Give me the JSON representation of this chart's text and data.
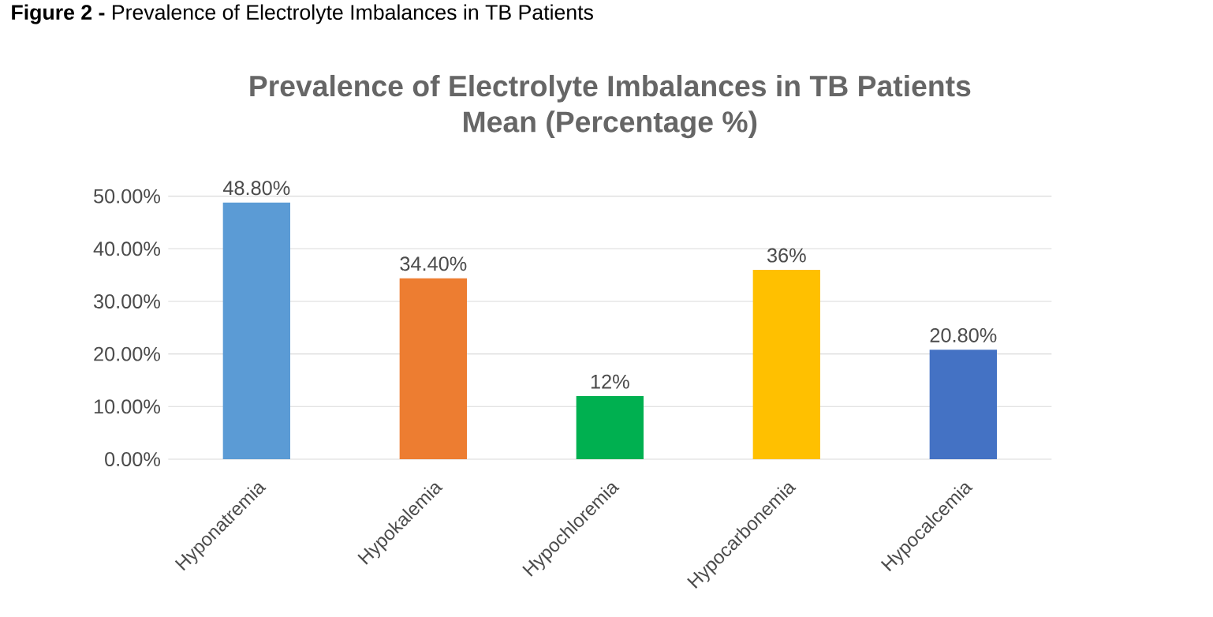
{
  "chart_data": {
    "type": "bar",
    "title": "Prevalence of Electrolyte Imbalances in TB Patients",
    "subtitle": "Mean (Percentage %)",
    "annotations": [
      "**Figure 2 -** Prevalence of Electrolyte Imbalances in TB Patients"
    ],
    "categories": [
      "Hyponatremia",
      "Hypokalemia",
      "Hypochloremia",
      "Hypocarbonemia",
      "Hypocalcemia"
    ],
    "values": [
      48.8,
      34.4,
      12,
      36,
      20.8
    ],
    "value_labels": [
      "48.80%",
      "34.40%",
      "12%",
      "36%",
      "20.80%"
    ],
    "colors": [
      "#5b9bd5",
      "#ed7d31",
      "#00b050",
      "#ffc000",
      "#4472c4"
    ],
    "ylim": [
      0,
      50
    ],
    "yticks": [
      {
        "value": 0,
        "label": "0.00%"
      },
      {
        "value": 10,
        "label": "10.00%"
      },
      {
        "value": 20,
        "label": "20.00%"
      },
      {
        "value": 30,
        "label": "30.00%"
      },
      {
        "value": 40,
        "label": "40.00%"
      },
      {
        "value": 50,
        "label": "50.00%"
      }
    ],
    "grid": true
  }
}
